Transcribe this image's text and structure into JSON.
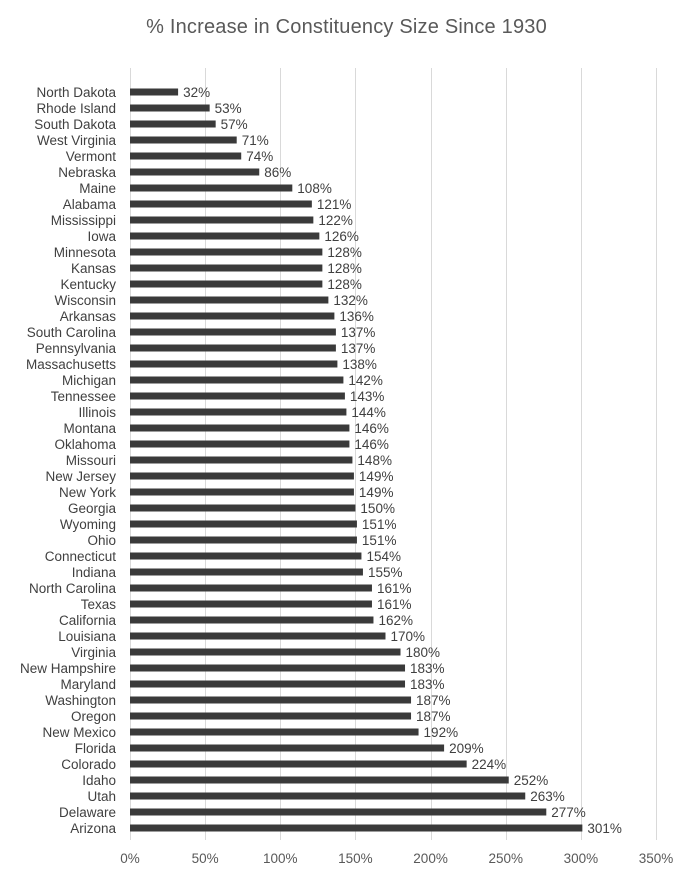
{
  "chart_data": {
    "type": "bar",
    "orientation": "horizontal",
    "title": "% Increase in Constituency Size Since 1930",
    "xlabel": "",
    "ylabel": "",
    "xlim": [
      0,
      350
    ],
    "x_ticks": [
      "0%",
      "50%",
      "100%",
      "150%",
      "200%",
      "250%",
      "300%",
      "350%"
    ],
    "x_tick_values": [
      0,
      50,
      100,
      150,
      200,
      250,
      300,
      350
    ],
    "grid": "vertical",
    "legend": "none",
    "bar_color": "#3a3a3a",
    "grid_color": "#d9d9d9",
    "categories": [
      "North Dakota",
      "Rhode Island",
      "South Dakota",
      "West Virginia",
      "Vermont",
      "Nebraska",
      "Maine",
      "Alabama",
      "Mississippi",
      "Iowa",
      "Minnesota",
      "Kansas",
      "Kentucky",
      "Wisconsin",
      "Arkansas",
      "South Carolina",
      "Pennsylvania",
      "Massachusetts",
      "Michigan",
      "Tennessee",
      "Illinois",
      "Montana",
      "Oklahoma",
      "Missouri",
      "New Jersey",
      "New York",
      "Georgia",
      "Wyoming",
      "Ohio",
      "Connecticut",
      "Indiana",
      "North Carolina",
      "Texas",
      "California",
      "Louisiana",
      "Virginia",
      "New Hampshire",
      "Maryland",
      "Washington",
      "Oregon",
      "New Mexico",
      "Florida",
      "Colorado",
      "Idaho",
      "Utah",
      "Delaware",
      "Arizona"
    ],
    "values": [
      32,
      53,
      57,
      71,
      74,
      86,
      108,
      121,
      122,
      126,
      128,
      128,
      128,
      132,
      136,
      137,
      137,
      138,
      142,
      143,
      144,
      146,
      146,
      148,
      149,
      149,
      150,
      151,
      151,
      154,
      155,
      161,
      161,
      162,
      170,
      180,
      183,
      183,
      187,
      187,
      192,
      209,
      224,
      252,
      263,
      277,
      301
    ],
    "data_labels": [
      "32%",
      "53%",
      "57%",
      "71%",
      "74%",
      "86%",
      "108%",
      "121%",
      "122%",
      "126%",
      "128%",
      "128%",
      "128%",
      "132%",
      "136%",
      "137%",
      "137%",
      "138%",
      "142%",
      "143%",
      "144%",
      "146%",
      "146%",
      "148%",
      "149%",
      "149%",
      "150%",
      "151%",
      "151%",
      "154%",
      "155%",
      "161%",
      "161%",
      "162%",
      "170%",
      "180%",
      "183%",
      "183%",
      "187%",
      "187%",
      "192%",
      "209%",
      "224%",
      "252%",
      "263%",
      "277%",
      "301%"
    ]
  }
}
